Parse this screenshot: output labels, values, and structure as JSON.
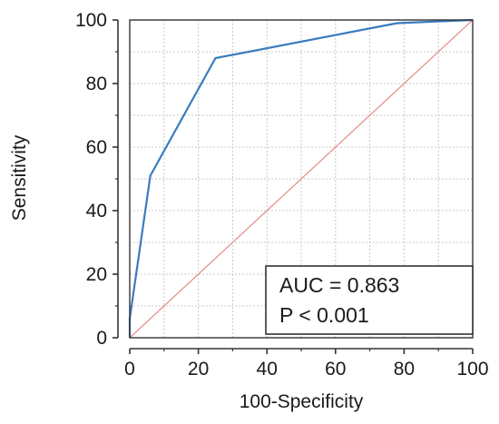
{
  "chart_data": {
    "type": "line",
    "xlabel": "100-Specificity",
    "ylabel": "Sensitivity",
    "xlim": [
      0,
      100
    ],
    "ylim": [
      0,
      100
    ],
    "xticks": [
      "0",
      "20",
      "40",
      "60",
      "80",
      "100"
    ],
    "yticks": [
      "0",
      "20",
      "40",
      "60",
      "80",
      "100"
    ],
    "grid": true,
    "series": [
      {
        "color": "#3a7bbf",
        "x": [
          0,
          0,
          6,
          25,
          78,
          100
        ],
        "y": [
          0,
          6,
          51,
          88,
          99,
          100
        ]
      },
      {
        "color": "#e8918d",
        "x": [
          0,
          100
        ],
        "y": [
          0,
          100
        ]
      }
    ],
    "annotation": {
      "line1": "AUC = 0.863",
      "line2": "P < 0.001",
      "placement": "bottom-right"
    }
  }
}
